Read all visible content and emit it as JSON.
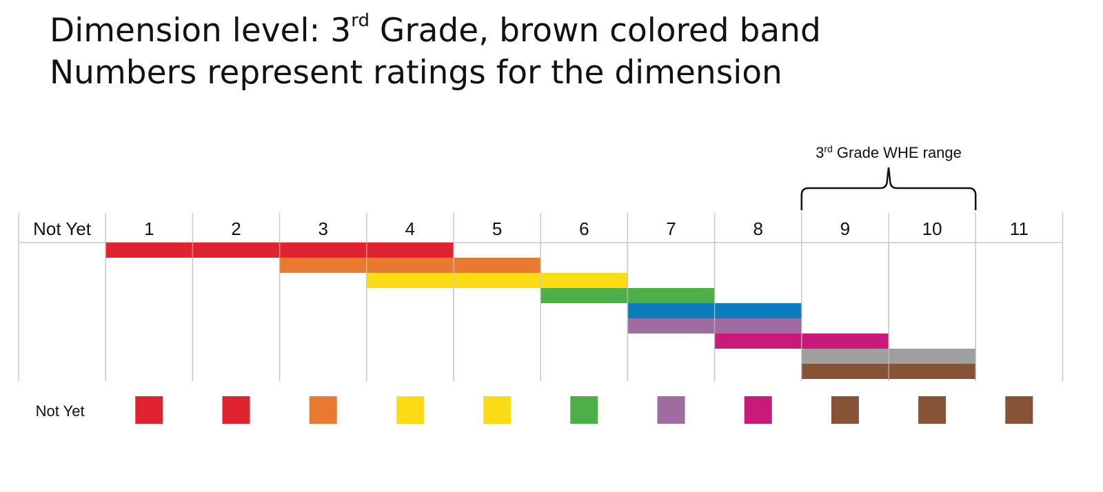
{
  "title": {
    "line1_prefix": "Dimension level: 3",
    "line1_sup": "rd",
    "line1_suffix": " Grade, brown colored band",
    "line2": "Numbers represent ratings for the dimension"
  },
  "columns": [
    "Not Yet",
    "1",
    "2",
    "3",
    "4",
    "5",
    "6",
    "7",
    "8",
    "9",
    "10",
    "11"
  ],
  "bands": [
    {
      "color": "#e0242f",
      "from": 1,
      "to": 4
    },
    {
      "color": "#e77930",
      "from": 3,
      "to": 5
    },
    {
      "color": "#fcdc17",
      "from": 4,
      "to": 6
    },
    {
      "color": "#4caf48",
      "from": 6,
      "to": 7
    },
    {
      "color": "#0a7ebd",
      "from": 7,
      "to": 8
    },
    {
      "color": "#a06ba3",
      "from": 7,
      "to": 8
    },
    {
      "color": "#c81b79",
      "from": 8,
      "to": 9
    },
    {
      "color": "#a09fa0",
      "from": 9,
      "to": 10
    },
    {
      "color": "#875337",
      "from": 9,
      "to": 10
    }
  ],
  "legend": {
    "label": "Not Yet",
    "swatches": [
      "#e0242f",
      "#e0242f",
      "#e77930",
      "#fcdc17",
      "#fcdc17",
      "#4caf48",
      "#a06ba3",
      "#c81b79",
      "#875337",
      "#875337",
      "#875337"
    ]
  },
  "range": {
    "label_prefix": "3",
    "label_sup": "rd",
    "label_suffix": " Grade WHE range",
    "from": 9,
    "to": 10
  }
}
